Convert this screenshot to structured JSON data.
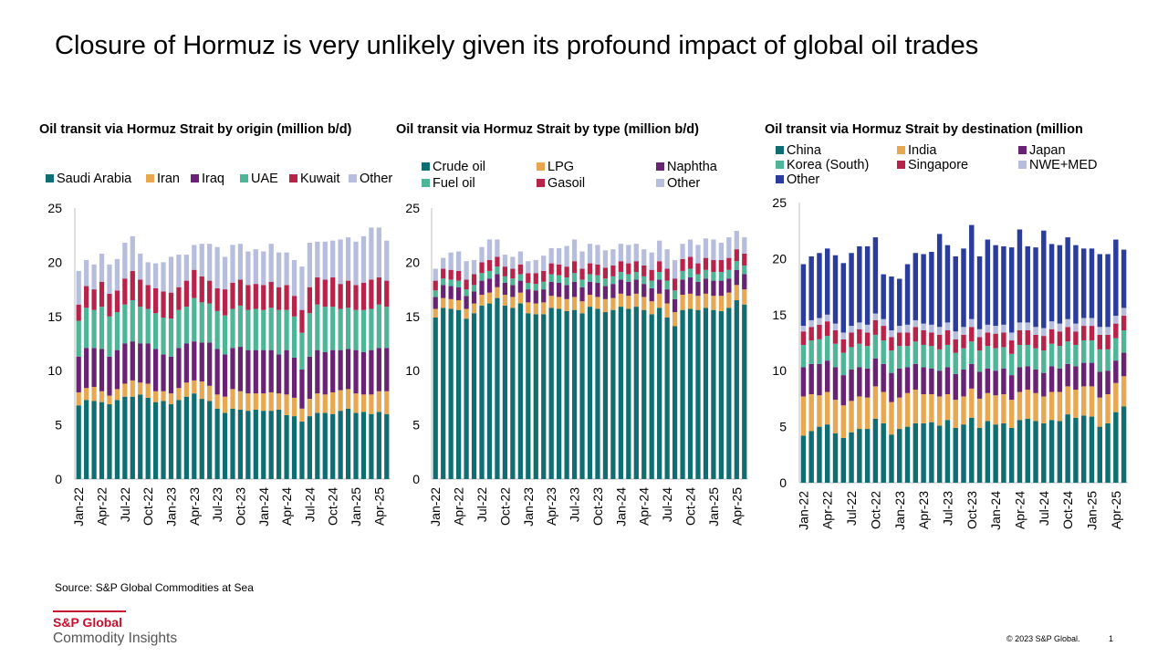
{
  "page": {
    "title": "Closure of Hormuz is very unlikely given its profound impact of global oil trades",
    "source": "Source: S&P Global Commodities at Sea",
    "logo_main": "S&P Global",
    "logo_sub": "Commodity Insights",
    "copyright": "© 2023 S&P Global.",
    "page_number": "1"
  },
  "chart_data": [
    {
      "type": "bar",
      "stacked": true,
      "title": "Oil transit via Hormuz Strait by origin (million b/d)",
      "legend_position": "top",
      "ylim": [
        0,
        25
      ],
      "yticks": [
        "0",
        "5",
        "10",
        "15",
        "20",
        "25"
      ],
      "x_tick_labels": [
        "Jan-22",
        "Apr-22",
        "Jul-22",
        "Oct-22",
        "Jan-23",
        "Apr-23",
        "Jul-23",
        "Oct-23",
        "Jan-24",
        "Apr-24",
        "Jul-24",
        "Oct-24",
        "Jan-25",
        "Apr-25"
      ],
      "series": [
        {
          "name": "Saudi Arabia",
          "color": "#0e6e72",
          "values": [
            6.8,
            7.3,
            7.2,
            7.1,
            6.9,
            7.3,
            7.6,
            7.6,
            7.8,
            7.5,
            7.1,
            7.2,
            6.9,
            7.3,
            7.6,
            7.9,
            7.4,
            7.2,
            6.5,
            6.1,
            6.5,
            6.4,
            6.3,
            6.4,
            6.3,
            6.3,
            6.4,
            5.9,
            5.8,
            5.3,
            5.8,
            6.1,
            6.1,
            6.0,
            6.3,
            6.5,
            6.1,
            6.2,
            6.0,
            6.2,
            6.0
          ]
        },
        {
          "name": "Iran",
          "color": "#e8a852",
          "values": [
            1.2,
            1.1,
            1.3,
            1.0,
            0.8,
            1.0,
            1.2,
            1.5,
            1.1,
            1.3,
            1.0,
            0.9,
            1.0,
            1.1,
            1.3,
            1.2,
            1.6,
            1.4,
            1.3,
            1.5,
            1.8,
            1.7,
            1.6,
            1.5,
            1.6,
            1.7,
            1.5,
            1.9,
            1.7,
            1.2,
            1.6,
            1.8,
            1.7,
            2.0,
            1.9,
            1.8,
            1.8,
            1.6,
            1.8,
            1.9,
            2.1
          ]
        },
        {
          "name": "Iraq",
          "color": "#6a2374",
          "values": [
            3.3,
            3.7,
            3.6,
            3.9,
            3.6,
            3.6,
            3.7,
            3.6,
            3.6,
            3.7,
            3.9,
            3.4,
            3.4,
            3.7,
            3.6,
            3.6,
            3.6,
            4.0,
            4.2,
            3.9,
            3.8,
            4.1,
            4.0,
            4.0,
            4.0,
            3.9,
            3.6,
            4.1,
            3.7,
            3.6,
            3.9,
            4.0,
            3.9,
            3.9,
            3.7,
            3.7,
            4.0,
            3.9,
            4.1,
            4.0,
            4.0
          ]
        },
        {
          "name": "UAE",
          "color": "#4eb697",
          "values": [
            3.3,
            3.7,
            3.5,
            3.9,
            3.7,
            3.5,
            3.6,
            3.8,
            3.4,
            3.2,
            3.3,
            3.4,
            3.5,
            3.5,
            3.4,
            4.0,
            3.7,
            3.6,
            3.5,
            3.6,
            3.6,
            3.8,
            3.7,
            3.8,
            3.7,
            3.9,
            4.1,
            3.7,
            3.8,
            3.4,
            4.0,
            4.2,
            4.2,
            4.0,
            3.8,
            3.8,
            3.7,
            3.9,
            3.8,
            4.0,
            3.8
          ]
        },
        {
          "name": "Kuwait",
          "color": "#b8234a",
          "values": [
            1.5,
            2.0,
            1.9,
            2.3,
            2.1,
            2.0,
            2.4,
            2.7,
            2.5,
            2.2,
            2.3,
            2.4,
            2.4,
            2.1,
            2.4,
            2.6,
            2.4,
            2.1,
            2.1,
            2.4,
            2.4,
            2.4,
            2.3,
            2.3,
            2.3,
            2.4,
            2.1,
            2.3,
            1.9,
            2.1,
            2.4,
            2.5,
            2.5,
            2.7,
            2.3,
            2.5,
            2.3,
            2.5,
            2.7,
            2.5,
            2.4
          ]
        },
        {
          "name": "Other",
          "color": "#b7bddd",
          "values": [
            3.1,
            2.4,
            2.3,
            2.6,
            2.7,
            2.9,
            3.3,
            3.2,
            2.4,
            2.1,
            2.3,
            2.7,
            3.3,
            3.0,
            2.4,
            2.3,
            3.0,
            3.4,
            3.8,
            3.0,
            3.5,
            3.3,
            3.1,
            3.2,
            3.1,
            3.5,
            3.2,
            3.0,
            3.3,
            4.0,
            4.1,
            3.3,
            3.5,
            3.4,
            4.1,
            4.0,
            4.0,
            4.3,
            4.8,
            4.6,
            3.7
          ]
        }
      ]
    },
    {
      "type": "bar",
      "stacked": true,
      "title": "Oil transit via Hormuz Strait by type (million b/d)",
      "legend_position": "top",
      "ylim": [
        0,
        25
      ],
      "yticks": [
        "0",
        "5",
        "10",
        "15",
        "20",
        "25"
      ],
      "x_tick_labels": [
        "Jan-22",
        "Apr-22",
        "Jul-22",
        "Oct-22",
        "Jan-23",
        "Apr-23",
        "Jul-23",
        "Oct-23",
        "Jan-24",
        "Apr-24",
        "Jul-24",
        "Oct-24",
        "Jan-25",
        "Apr-25"
      ],
      "series": [
        {
          "name": "Crude oil",
          "color": "#0e6e72",
          "values": [
            14.9,
            15.8,
            15.7,
            15.6,
            14.8,
            15.3,
            16.0,
            16.2,
            16.7,
            16.0,
            15.8,
            16.2,
            15.3,
            15.2,
            15.2,
            15.8,
            15.7,
            15.5,
            15.6,
            15.3,
            15.9,
            15.7,
            15.4,
            15.6,
            15.9,
            15.7,
            15.9,
            15.6,
            15.2,
            15.8,
            14.9,
            14.1,
            15.6,
            15.7,
            15.6,
            15.8,
            15.6,
            15.5,
            15.8,
            16.5,
            16.1
          ]
        },
        {
          "name": "LPG",
          "color": "#e8a852",
          "values": [
            0.8,
            0.9,
            0.9,
            0.9,
            0.9,
            0.9,
            1.0,
            1.0,
            1.0,
            1.0,
            1.0,
            1.0,
            1.0,
            1.0,
            1.1,
            1.1,
            1.1,
            1.1,
            1.2,
            1.1,
            1.1,
            1.1,
            1.2,
            1.1,
            1.2,
            1.2,
            1.2,
            1.2,
            1.2,
            1.3,
            1.3,
            1.3,
            1.4,
            1.4,
            1.3,
            1.3,
            1.3,
            1.4,
            1.4,
            1.4,
            1.4
          ]
        },
        {
          "name": "Naphtha",
          "color": "#6a2374",
          "values": [
            1.1,
            1.2,
            1.2,
            1.2,
            1.2,
            1.1,
            1.3,
            1.3,
            1.2,
            1.1,
            1.1,
            1.1,
            1.2,
            1.2,
            1.2,
            1.3,
            1.3,
            1.3,
            1.4,
            1.3,
            1.2,
            1.3,
            1.2,
            1.3,
            1.3,
            1.3,
            1.3,
            1.2,
            1.2,
            1.3,
            1.3,
            1.2,
            1.4,
            1.5,
            1.3,
            1.4,
            1.4,
            1.4,
            1.3,
            1.4,
            1.4
          ]
        },
        {
          "name": "Fuel oil",
          "color": "#4eb697",
          "values": [
            0.6,
            0.6,
            0.6,
            0.6,
            0.6,
            0.6,
            0.7,
            0.7,
            0.7,
            0.6,
            0.6,
            0.6,
            0.6,
            0.6,
            0.7,
            0.7,
            0.7,
            0.7,
            0.8,
            0.7,
            0.7,
            0.7,
            0.7,
            0.7,
            0.7,
            0.7,
            0.7,
            0.7,
            0.7,
            0.7,
            0.8,
            0.8,
            0.8,
            0.8,
            0.7,
            0.8,
            0.8,
            0.8,
            0.8,
            0.8,
            0.8
          ]
        },
        {
          "name": "Gasoil",
          "color": "#b8234a",
          "values": [
            0.9,
            0.9,
            0.9,
            0.9,
            0.9,
            1.0,
            1.0,
            1.0,
            0.9,
            0.9,
            0.9,
            0.9,
            0.9,
            1.0,
            1.0,
            1.0,
            1.0,
            1.0,
            1.1,
            1.0,
            1.0,
            1.0,
            1.0,
            1.0,
            1.0,
            1.0,
            1.0,
            1.0,
            1.0,
            1.0,
            1.1,
            1.1,
            1.1,
            1.1,
            1.0,
            1.1,
            1.1,
            1.1,
            1.1,
            1.1,
            1.1
          ]
        },
        {
          "name": "Other",
          "color": "#b7bddd",
          "values": [
            1.1,
            1.0,
            1.6,
            1.8,
            1.7,
            1.3,
            1.4,
            1.9,
            1.6,
            1.1,
            1.1,
            1.2,
            1.1,
            1.2,
            1.4,
            1.4,
            1.5,
            1.9,
            2.0,
            1.6,
            1.8,
            1.8,
            1.6,
            1.5,
            1.6,
            1.7,
            1.6,
            1.5,
            1.6,
            1.9,
            1.8,
            1.7,
            1.4,
            1.6,
            1.7,
            1.8,
            1.9,
            1.6,
            1.9,
            1.7,
            1.5
          ]
        }
      ]
    },
    {
      "type": "bar",
      "stacked": true,
      "title": "Oil transit via Hormuz Strait by destination (million",
      "legend_position": "top",
      "ylim": [
        0,
        25
      ],
      "yticks": [
        "0",
        "5",
        "10",
        "15",
        "20",
        "25"
      ],
      "x_tick_labels": [
        "Jan-22",
        "Apr-22",
        "Jul-22",
        "Oct-22",
        "Jan-23",
        "Apr-23",
        "Jul-23",
        "Oct-23",
        "Jan-24",
        "Apr-24",
        "Jul-24",
        "Oct-24",
        "Jan-25",
        "Apr-25"
      ],
      "series": [
        {
          "name": "China",
          "color": "#0e6e72",
          "values": [
            4.2,
            4.6,
            5.0,
            5.2,
            4.4,
            4.0,
            4.5,
            4.8,
            4.8,
            5.7,
            5.3,
            4.3,
            4.8,
            5.0,
            5.3,
            5.3,
            5.4,
            5.1,
            5.6,
            4.9,
            5.2,
            5.8,
            4.9,
            5.5,
            5.2,
            5.3,
            4.9,
            5.6,
            5.7,
            5.5,
            5.3,
            5.6,
            5.5,
            6.1,
            5.8,
            6.0,
            5.9,
            5.0,
            5.3,
            6.3,
            6.8
          ]
        },
        {
          "name": "India",
          "color": "#e8a852",
          "values": [
            3.5,
            3.3,
            2.8,
            2.9,
            3.0,
            2.9,
            2.8,
            2.9,
            2.8,
            2.9,
            2.8,
            2.9,
            2.8,
            3.0,
            3.0,
            2.6,
            2.5,
            2.6,
            2.3,
            2.5,
            2.5,
            2.6,
            2.6,
            2.5,
            2.6,
            2.6,
            2.5,
            2.5,
            2.6,
            2.5,
            2.4,
            2.5,
            2.6,
            2.5,
            2.5,
            2.6,
            2.7,
            2.6,
            2.6,
            2.6,
            2.7
          ]
        },
        {
          "name": "Japan",
          "color": "#6a2374",
          "values": [
            2.6,
            2.7,
            2.8,
            2.8,
            2.9,
            2.7,
            2.8,
            2.6,
            2.6,
            2.5,
            2.5,
            2.6,
            2.6,
            2.3,
            2.3,
            2.4,
            2.3,
            2.3,
            2.4,
            2.3,
            2.4,
            2.2,
            2.4,
            2.2,
            2.2,
            2.3,
            2.2,
            2.2,
            2.1,
            2.1,
            2.1,
            2.3,
            2.1,
            2.0,
            2.1,
            2.1,
            2.1,
            2.3,
            2.1,
            2.0,
            2.1
          ]
        },
        {
          "name": "Korea (South)",
          "color": "#4eb697",
          "values": [
            2.0,
            2.1,
            2.2,
            2.2,
            2.1,
            2.0,
            2.0,
            2.1,
            2.0,
            2.1,
            2.1,
            2.0,
            2.0,
            1.9,
            2.0,
            2.0,
            2.0,
            1.9,
            2.0,
            1.9,
            1.9,
            2.0,
            1.9,
            2.0,
            2.0,
            1.9,
            1.9,
            2.0,
            1.9,
            1.9,
            2.0,
            2.0,
            2.0,
            2.0,
            1.9,
            2.0,
            2.0,
            2.0,
            1.9,
            2.0,
            2.0
          ]
        },
        {
          "name": "Singapore",
          "color": "#b8234a",
          "values": [
            1.2,
            1.2,
            1.3,
            1.3,
            1.2,
            1.2,
            1.3,
            1.3,
            1.2,
            1.3,
            1.3,
            1.2,
            1.2,
            1.2,
            1.3,
            1.3,
            1.2,
            1.3,
            1.3,
            1.2,
            1.2,
            1.3,
            1.2,
            1.2,
            1.3,
            1.3,
            1.2,
            1.3,
            1.3,
            1.2,
            1.3,
            1.3,
            1.3,
            1.3,
            1.2,
            1.3,
            1.3,
            1.3,
            1.3,
            1.3,
            1.3
          ]
        },
        {
          "name": "NWE+MED",
          "color": "#b7bddd",
          "values": [
            0.5,
            0.6,
            0.6,
            0.6,
            0.6,
            0.6,
            0.6,
            0.6,
            0.7,
            0.6,
            0.6,
            0.6,
            0.6,
            0.7,
            0.6,
            0.6,
            0.7,
            0.7,
            0.7,
            0.7,
            0.7,
            0.7,
            0.7,
            0.7,
            0.7,
            0.7,
            0.7,
            0.7,
            0.7,
            0.7,
            0.7,
            0.7,
            0.7,
            0.7,
            0.7,
            0.7,
            0.7,
            0.7,
            0.7,
            0.7,
            0.7
          ]
        },
        {
          "name": "Other",
          "color": "#2a3d9d",
          "values": [
            5.5,
            5.7,
            5.8,
            5.9,
            6.1,
            6.2,
            6.5,
            6.8,
            7.0,
            6.8,
            4.0,
            4.8,
            4.2,
            5.4,
            6.0,
            6.2,
            6.5,
            8.3,
            6.9,
            6.7,
            7.0,
            8.4,
            6.5,
            7.6,
            7.2,
            7.0,
            7.6,
            8.3,
            6.8,
            7.1,
            8.7,
            6.9,
            7.0,
            7.3,
            7.0,
            6.2,
            6.2,
            6.5,
            6.5,
            6.8,
            5.2
          ]
        }
      ]
    }
  ]
}
